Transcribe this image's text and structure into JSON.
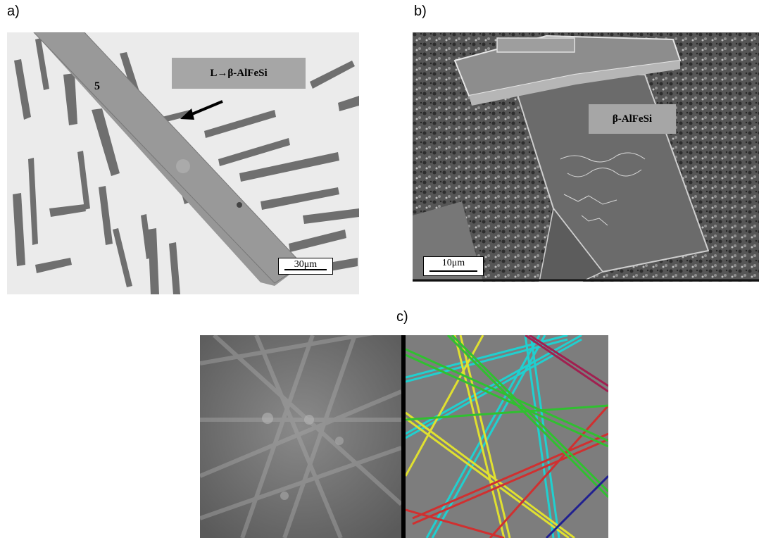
{
  "panels": {
    "a": {
      "letter": "a)",
      "phase_label": "L→β-AlFeSi",
      "number_label": "5",
      "scale_bar": "30μm",
      "colors": {
        "matrix": "#ebebeb",
        "needle": "#8a8a8a",
        "label_box": "#a6a6a6"
      }
    },
    "b": {
      "letter": "b)",
      "phase_label": "β-AlFeSi",
      "scale_bar": "10μm",
      "colors": {
        "background": "#4a4a4a",
        "crystal": "#6a6a6a",
        "label_box": "#a6a6a6"
      }
    },
    "c": {
      "letter": "c)",
      "left_image": "kikuchi-pattern",
      "right_image": "indexed-kikuchi-pattern",
      "band_colors": [
        "#20d0d0",
        "#e0e030",
        "#d03030",
        "#30c030",
        "#202090",
        "#a02050"
      ]
    }
  }
}
